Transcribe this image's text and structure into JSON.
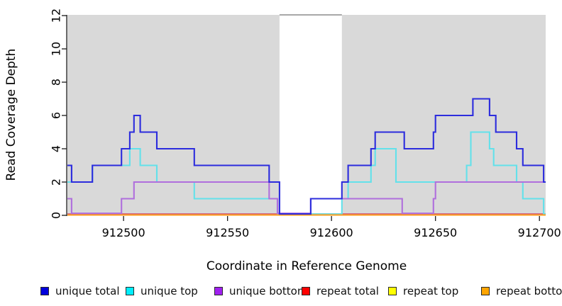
{
  "chart_data": {
    "type": "line",
    "subtype": "step-coverage",
    "title": "",
    "xlabel": "Coordinate in Reference Genome",
    "ylabel": "Read Coverage Depth",
    "xlim": [
      912473,
      912703
    ],
    "ylim": [
      0,
      12
    ],
    "xticks": [
      912500,
      912550,
      912600,
      912650,
      912700
    ],
    "yticks": [
      0,
      2,
      4,
      6,
      8,
      10,
      12
    ],
    "grid": false,
    "panel_color": "#d9d9d9",
    "gap_region": {
      "from": 912575,
      "to": 912605,
      "color": "#ffffff",
      "top_border_color": "#8c8c8c"
    },
    "shaded_regions": [
      {
        "from": 912473,
        "to": 912575
      },
      {
        "from": 912605,
        "to": 912703
      }
    ],
    "series": [
      {
        "name": "repeat top",
        "color": "#FFFF00",
        "line_color": "#ffe800",
        "steps": [
          [
            912473,
            0
          ]
        ]
      },
      {
        "name": "repeat total",
        "color": "#FF0000",
        "line_color": "#d05e7f",
        "steps": [
          [
            912473,
            0
          ]
        ]
      },
      {
        "name": "unique top",
        "color": "#00EEFF",
        "line_color": "#63e1ea",
        "steps": [
          [
            912473,
            2
          ],
          [
            912485,
            3
          ],
          [
            912503,
            4
          ],
          [
            912508,
            3
          ],
          [
            912516,
            2
          ],
          [
            912534,
            1
          ],
          [
            912574,
            0
          ],
          [
            912605,
            1
          ],
          [
            912608,
            2
          ],
          [
            912619,
            3
          ],
          [
            912621,
            4
          ],
          [
            912631,
            2
          ],
          [
            912665,
            3
          ],
          [
            912667,
            5
          ],
          [
            912676,
            4
          ],
          [
            912678,
            3
          ],
          [
            912689,
            2
          ],
          [
            912692,
            1
          ],
          [
            912702,
            0
          ]
        ]
      },
      {
        "name": "unique bottom",
        "color": "#A020F0",
        "line_color": "#b06fdd",
        "steps": [
          [
            912473,
            1
          ],
          [
            912475,
            0
          ],
          [
            912499,
            1
          ],
          [
            912505,
            2
          ],
          [
            912570,
            1
          ],
          [
            912574,
            0
          ],
          [
            912590,
            1
          ],
          [
            912634,
            0
          ],
          [
            912649,
            1
          ],
          [
            912650,
            2
          ]
        ]
      },
      {
        "name": "repeat bottom",
        "color": "#FFA500",
        "line_color": "#ff9c1b",
        "steps": [
          [
            912473,
            0
          ]
        ]
      },
      {
        "name": "unique total",
        "color": "#0000DC",
        "line_color": "#2c2cdd",
        "steps": [
          [
            912473,
            3
          ],
          [
            912475,
            2
          ],
          [
            912485,
            3
          ],
          [
            912499,
            4
          ],
          [
            912503,
            5
          ],
          [
            912505,
            6
          ],
          [
            912508,
            5
          ],
          [
            912516,
            4
          ],
          [
            912534,
            3
          ],
          [
            912570,
            2
          ],
          [
            912575,
            0
          ],
          [
            912590,
            1
          ],
          [
            912605,
            2
          ],
          [
            912608,
            3
          ],
          [
            912619,
            4
          ],
          [
            912621,
            5
          ],
          [
            912635,
            4
          ],
          [
            912649,
            5
          ],
          [
            912650,
            6
          ],
          [
            912668,
            7
          ],
          [
            912676,
            6
          ],
          [
            912679,
            5
          ],
          [
            912689,
            4
          ],
          [
            912692,
            3
          ],
          [
            912702,
            2
          ]
        ]
      }
    ],
    "legend": [
      {
        "label": "unique total",
        "color": "#0000DC",
        "x": 57
      },
      {
        "label": "unique top",
        "color": "#00EEFF",
        "x": 177
      },
      {
        "label": "unique bottom",
        "color": "#A020F0",
        "x": 302
      },
      {
        "label": "repeat total",
        "color": "#FF0000",
        "x": 425
      },
      {
        "label": "repeat top",
        "color": "#FFFF00",
        "x": 547
      },
      {
        "label": "repeat bottom",
        "color": "#FFA500",
        "x": 678
      }
    ],
    "legend_position": "bottom"
  }
}
